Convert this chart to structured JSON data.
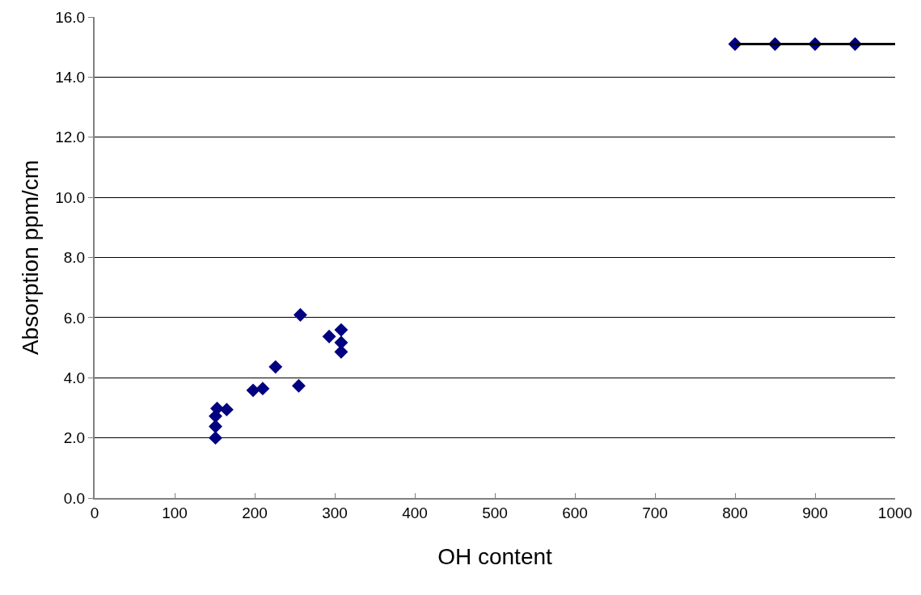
{
  "chart_data": {
    "type": "scatter",
    "xlabel": "OH content",
    "ylabel": "Absorption ppm/cm",
    "xlim": [
      0,
      1000
    ],
    "xticks": [
      0,
      100,
      200,
      300,
      400,
      500,
      600,
      700,
      800,
      900,
      1000
    ],
    "ylim": [
      0,
      16
    ],
    "yticks": [
      {
        "value": 0,
        "label": "0.0"
      },
      {
        "value": 2,
        "label": "2.0"
      },
      {
        "value": 4,
        "label": "4.0"
      },
      {
        "value": 6,
        "label": "6.0"
      },
      {
        "value": 8,
        "label": "8.0"
      },
      {
        "value": 10,
        "label": "10.0"
      },
      {
        "value": 12,
        "label": "12.0"
      },
      {
        "value": 14,
        "label": "14.0"
      },
      {
        "value": 16,
        "label": "16.0"
      }
    ],
    "grid": "y",
    "marker": "diamond",
    "series": [
      {
        "color": "#000080",
        "x": [
          151,
          151,
          151,
          153,
          165,
          198,
          210,
          226,
          255,
          257,
          293,
          308,
          308,
          308,
          800,
          850,
          900,
          950
        ],
        "values": [
          2.0,
          2.38,
          2.72,
          2.98,
          2.94,
          3.58,
          3.64,
          4.36,
          3.73,
          6.09,
          5.37,
          5.59,
          5.17,
          4.86,
          15.1,
          15.1,
          15.1,
          15.1
        ]
      },
      {
        "type": "line",
        "color": "#000000",
        "marker": "none",
        "line_style": "solid",
        "x": [
          800,
          1000
        ],
        "values": [
          15.1,
          15.1
        ]
      }
    ]
  }
}
